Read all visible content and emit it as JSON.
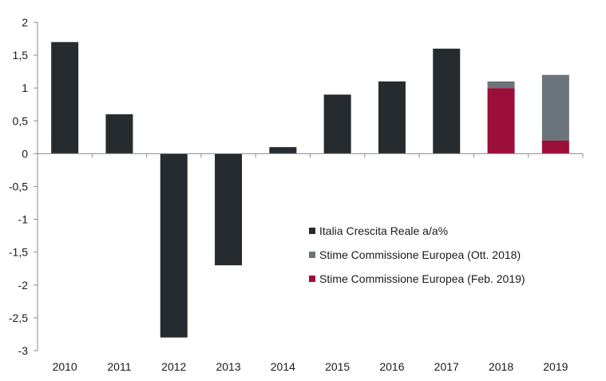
{
  "chart_data": {
    "type": "bar",
    "stacked": true,
    "title": "",
    "xlabel": "",
    "ylabel": "",
    "ylim": [
      -3,
      2
    ],
    "yticks": [
      2,
      1.5,
      1,
      0.5,
      0,
      -0.5,
      -1,
      -1.5,
      -2,
      -2.5,
      -3
    ],
    "ytick_labels": [
      "2",
      "1,5",
      "1",
      "0,5",
      "0",
      "-0,5",
      "-1",
      "-1,5",
      "-2",
      "-2,5",
      "-3"
    ],
    "categories": [
      "2010",
      "2011",
      "2012",
      "2013",
      "2014",
      "2015",
      "2016",
      "2017",
      "2018",
      "2019"
    ],
    "series": [
      {
        "name": "Italia Crescita Reale a/a%",
        "color": "#262b30",
        "values": [
          1.7,
          0.6,
          -2.8,
          -1.7,
          0.1,
          0.9,
          1.1,
          1.6,
          null,
          null
        ]
      },
      {
        "name": "Stime Commissione Europea (Feb. 2019)",
        "color": "#9b0f3a",
        "values": [
          null,
          null,
          null,
          null,
          null,
          null,
          null,
          null,
          1.0,
          0.2
        ]
      },
      {
        "name": "Stime Commissione Europea (Ott. 2018)",
        "color": "#6b747a",
        "values": [
          null,
          null,
          null,
          null,
          null,
          null,
          null,
          null,
          0.1,
          1.0
        ]
      }
    ],
    "legend": {
      "placement": "center-right",
      "entries": [
        {
          "label": "Italia Crescita Reale a/a%",
          "color": "#262b30"
        },
        {
          "label": "Stime Commissione Europea (Ott. 2018)",
          "color": "#6b747a"
        },
        {
          "label": "Stime Commissione Europea (Feb. 2019)",
          "color": "#9b0f3a"
        }
      ]
    },
    "grid": false
  }
}
